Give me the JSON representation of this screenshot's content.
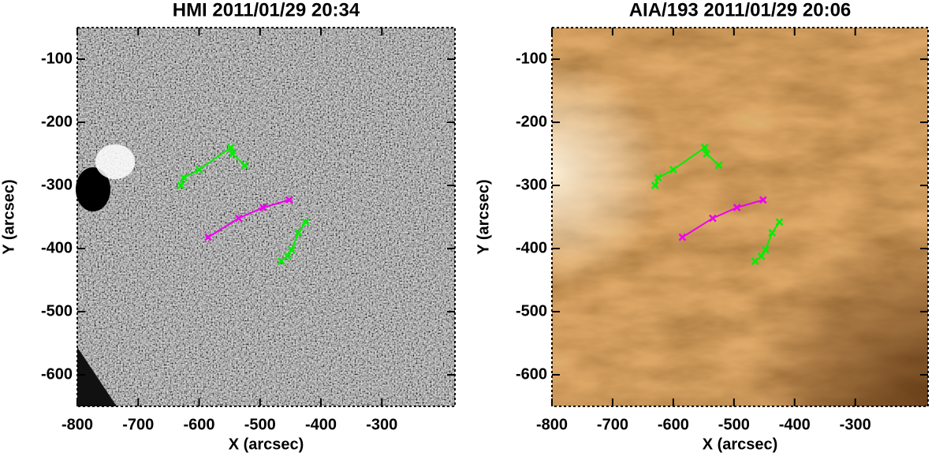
{
  "chart_data": [
    {
      "type": "image",
      "title": "HMI 2011/01/29 20:34",
      "xlabel": "X (arcsec)",
      "ylabel": "Y (arcsec)",
      "image_color": "gray",
      "xlim": [
        -800,
        -180
      ],
      "ylim": [
        -650,
        -50
      ],
      "xticks": [
        -800,
        -700,
        -600,
        -500,
        -400,
        -300
      ],
      "yticks": [
        -600,
        -500,
        -400,
        -300,
        -200,
        -100
      ],
      "series": [
        {
          "color": "#00ee00",
          "x": [
            -630,
            -625,
            -600,
            -548,
            -545,
            -525
          ],
          "values": [
            -300,
            -288,
            -275,
            -240,
            -250,
            -268
          ]
        },
        {
          "color": "#ee00ee",
          "x": [
            -585,
            -535,
            -495,
            -452
          ],
          "values": [
            -382,
            -352,
            -335,
            -323
          ]
        },
        {
          "color": "#00ee00",
          "x": [
            -465,
            -455,
            -448,
            -437,
            -425
          ],
          "values": [
            -420,
            -412,
            -402,
            -375,
            -358
          ]
        }
      ]
    },
    {
      "type": "image",
      "title": "AIA/193 2011/01/29 20:06",
      "xlabel": "X (arcsec)",
      "ylabel": "Y (arcsec)",
      "image_color": "brown",
      "xlim": [
        -800,
        -180
      ],
      "ylim": [
        -650,
        -50
      ],
      "xticks": [
        -800,
        -700,
        -600,
        -500,
        -400,
        -300
      ],
      "yticks": [
        -600,
        -500,
        -400,
        -300,
        -200,
        -100
      ],
      "series": [
        {
          "color": "#00ee00",
          "x": [
            -630,
            -625,
            -600,
            -548,
            -545,
            -525
          ],
          "values": [
            -300,
            -288,
            -275,
            -240,
            -250,
            -268
          ]
        },
        {
          "color": "#ee00ee",
          "x": [
            -585,
            -535,
            -495,
            -452
          ],
          "values": [
            -382,
            -352,
            -335,
            -323
          ]
        },
        {
          "color": "#00ee00",
          "x": [
            -465,
            -455,
            -448,
            -437,
            -425
          ],
          "values": [
            -420,
            -412,
            -402,
            -375,
            -358
          ]
        }
      ]
    }
  ]
}
